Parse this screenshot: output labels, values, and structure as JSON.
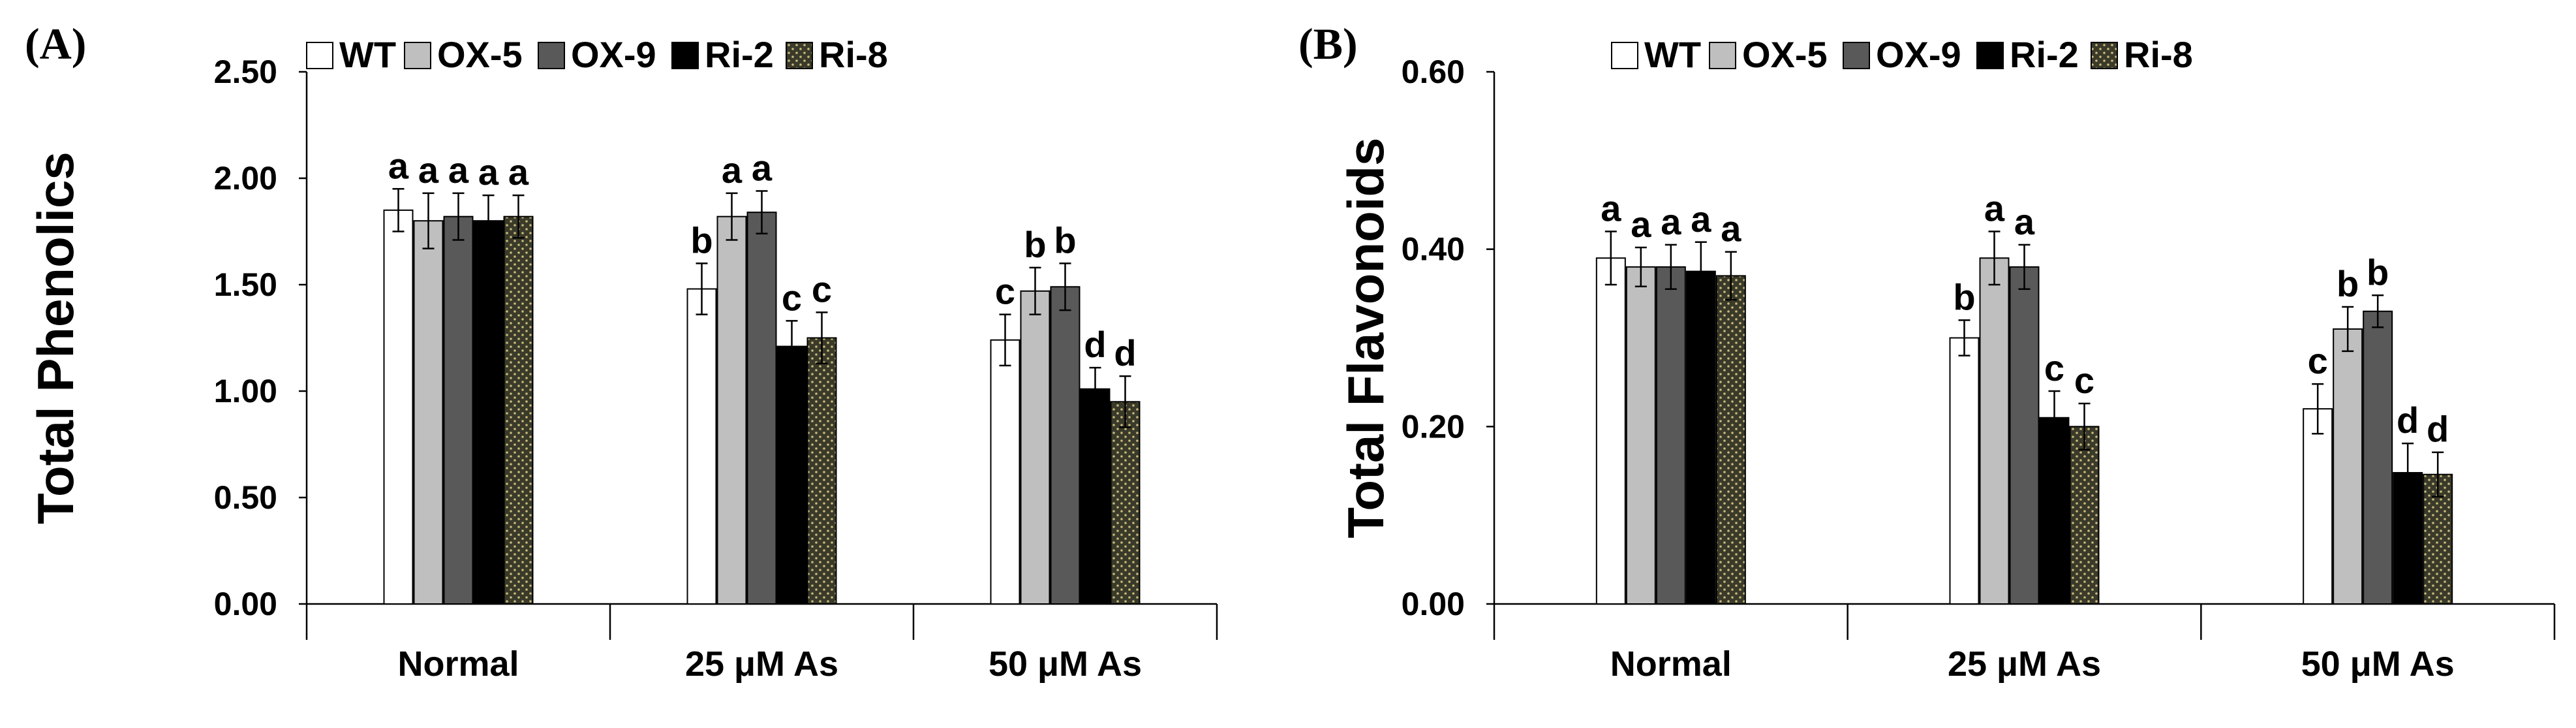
{
  "series_styles": [
    {
      "name": "WT",
      "fill": "#ffffff",
      "pattern": false
    },
    {
      "name": "OX-5",
      "fill": "#bfbfbf",
      "pattern": false
    },
    {
      "name": "OX-9",
      "fill": "#595959",
      "pattern": false
    },
    {
      "name": "Ri-2",
      "fill": "#000000",
      "pattern": false
    },
    {
      "name": "Ri-8",
      "fill": "#3a3a2a",
      "pattern": true,
      "dot_color": "#c9b97a"
    }
  ],
  "chart_data": [
    {
      "type": "bar",
      "panel_label": "(A)",
      "title": "",
      "xlabel": "",
      "ylabel": "Total Phenolics",
      "ylim": [
        0,
        2.5
      ],
      "yticks": [
        0,
        0.5,
        1.0,
        1.5,
        2.0,
        2.5
      ],
      "ytick_labels": [
        "0.00",
        "0.50",
        "1.00",
        "1.50",
        "2.00",
        "2.50"
      ],
      "categories": [
        "Normal",
        "25 μM As",
        "50 μM As"
      ],
      "legend_position": "top",
      "series": [
        {
          "name": "WT",
          "values": [
            1.85,
            1.48,
            1.24
          ],
          "errors": [
            0.1,
            0.12,
            0.12
          ],
          "sig": [
            "a",
            "b",
            "c"
          ]
        },
        {
          "name": "OX-5",
          "values": [
            1.8,
            1.82,
            1.47
          ],
          "errors": [
            0.13,
            0.11,
            0.11
          ],
          "sig": [
            "a",
            "a",
            "b"
          ]
        },
        {
          "name": "OX-9",
          "values": [
            1.82,
            1.84,
            1.49
          ],
          "errors": [
            0.11,
            0.1,
            0.11
          ],
          "sig": [
            "a",
            "a",
            "b"
          ]
        },
        {
          "name": "Ri-2",
          "values": [
            1.8,
            1.21,
            1.01
          ],
          "errors": [
            0.12,
            0.12,
            0.1
          ],
          "sig": [
            "a",
            "c",
            "d"
          ]
        },
        {
          "name": "Ri-8",
          "values": [
            1.82,
            1.25,
            0.95
          ],
          "errors": [
            0.1,
            0.12,
            0.12
          ],
          "sig": [
            "a",
            "c",
            "d"
          ]
        }
      ]
    },
    {
      "type": "bar",
      "panel_label": "(B)",
      "title": "",
      "xlabel": "",
      "ylabel": "Total Flavonoids",
      "ylim": [
        0,
        0.6
      ],
      "yticks": [
        0,
        0.2,
        0.4,
        0.6
      ],
      "ytick_labels": [
        "0.00",
        "0.20",
        "0.40",
        "0.60"
      ],
      "categories": [
        "Normal",
        "25 μM As",
        "50 μM As"
      ],
      "legend_position": "top",
      "series": [
        {
          "name": "WT",
          "values": [
            0.39,
            0.3,
            0.22
          ],
          "errors": [
            0.03,
            0.02,
            0.028
          ],
          "sig": [
            "a",
            "b",
            "c"
          ]
        },
        {
          "name": "OX-5",
          "values": [
            0.38,
            0.39,
            0.31
          ],
          "errors": [
            0.022,
            0.03,
            0.025
          ],
          "sig": [
            "a",
            "a",
            "b"
          ]
        },
        {
          "name": "OX-9",
          "values": [
            0.38,
            0.38,
            0.33
          ],
          "errors": [
            0.025,
            0.025,
            0.018
          ],
          "sig": [
            "a",
            "a",
            "b"
          ]
        },
        {
          "name": "Ri-2",
          "values": [
            0.375,
            0.21,
            0.148
          ],
          "errors": [
            0.033,
            0.03,
            0.033
          ],
          "sig": [
            "a",
            "c",
            "d"
          ]
        },
        {
          "name": "Ri-8",
          "values": [
            0.37,
            0.2,
            0.146
          ],
          "errors": [
            0.027,
            0.026,
            0.025
          ],
          "sig": [
            "a",
            "c",
            "d"
          ]
        }
      ]
    }
  ]
}
